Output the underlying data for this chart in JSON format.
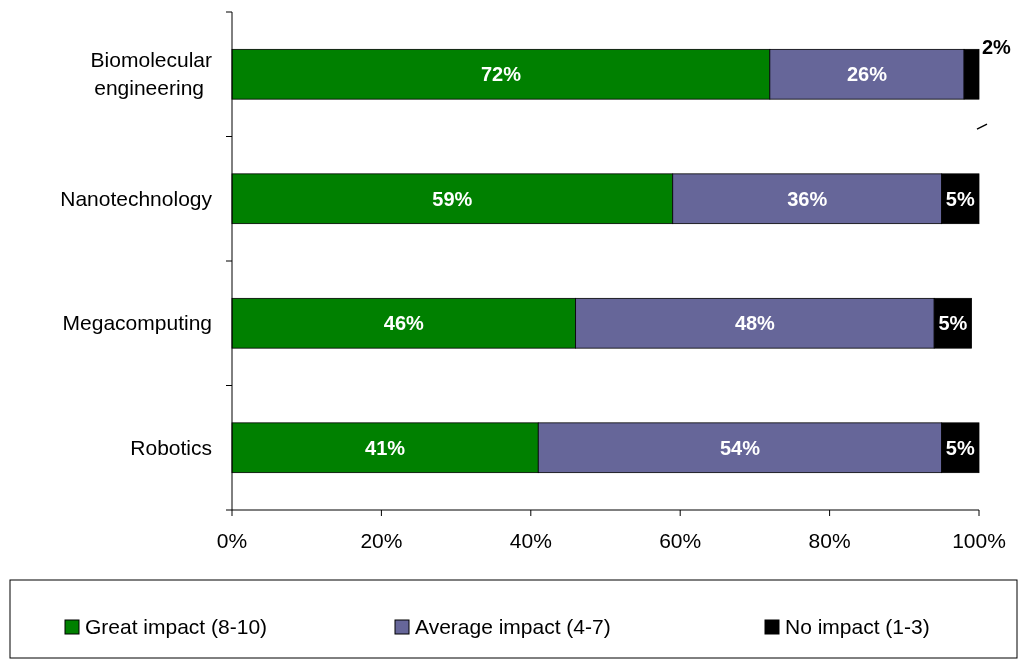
{
  "chart_data": {
    "type": "bar",
    "orientation": "horizontal",
    "stacked": true,
    "categories": [
      "Biomolecular\nengineering",
      "Nanotechnology",
      "Megacomputing",
      "Robotics"
    ],
    "series": [
      {
        "name": "Great impact (8-10)",
        "color": "#008000",
        "values": [
          72,
          59,
          46,
          41
        ],
        "value_labels": [
          "72%",
          "59%",
          "46%",
          "41%"
        ]
      },
      {
        "name": "Average impact (4-7)",
        "color": "#666699",
        "values": [
          26,
          36,
          48,
          54
        ],
        "value_labels": [
          "26%",
          "36%",
          "48%",
          "54%"
        ]
      },
      {
        "name": "No impact (1-3)",
        "color": "#000000",
        "values": [
          2,
          5,
          5,
          5
        ],
        "value_labels": [
          "2%",
          "5%",
          "5%",
          "5%"
        ]
      }
    ],
    "xlim": [
      0,
      100
    ],
    "xticks": [
      {
        "value": 0,
        "label": "0%"
      },
      {
        "value": 20,
        "label": "20%"
      },
      {
        "value": 40,
        "label": "40%"
      },
      {
        "value": 60,
        "label": "60%"
      },
      {
        "value": 80,
        "label": "80%"
      },
      {
        "value": 100,
        "label": "100%"
      }
    ],
    "grid": false,
    "legend": "bottom"
  }
}
